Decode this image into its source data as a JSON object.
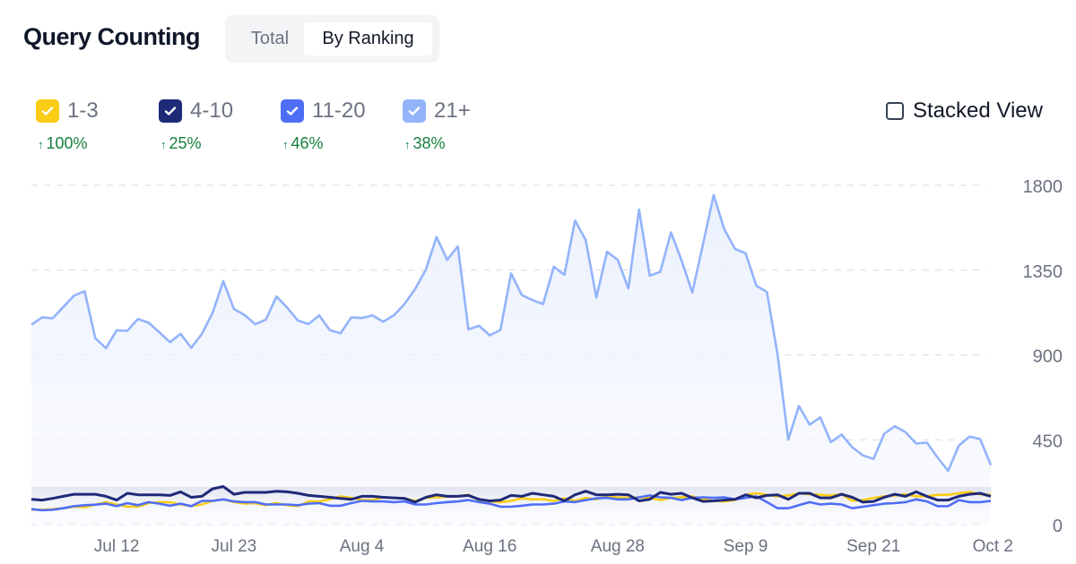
{
  "header": {
    "title": "Query Counting",
    "tabs": [
      {
        "label": "Total",
        "active": false
      },
      {
        "label": "By Ranking",
        "active": true
      }
    ]
  },
  "legend": [
    {
      "label": "1-3",
      "color": "#facc15",
      "checked": true,
      "change": "100%",
      "direction": "up"
    },
    {
      "label": "4-10",
      "color": "#1e2a78",
      "checked": true,
      "change": "25%",
      "direction": "up"
    },
    {
      "label": "11-20",
      "color": "#4f6ef7",
      "checked": true,
      "change": "46%",
      "direction": "up"
    },
    {
      "label": "21+",
      "color": "#93b4fb",
      "checked": true,
      "change": "38%",
      "direction": "up"
    }
  ],
  "stacked_view": {
    "label": "Stacked View",
    "checked": false
  },
  "chart_data": {
    "type": "line",
    "grid": true,
    "ylim": [
      0,
      1800
    ],
    "yticks": [
      "0",
      "450",
      "900",
      "1350",
      "1800"
    ],
    "yticks_values": [
      0,
      450,
      900,
      1350,
      1800
    ],
    "xtick_labels": [
      "Jul 12",
      "Jul 23",
      "Aug 4",
      "Aug 16",
      "Aug 28",
      "Sep 9",
      "Sep 21",
      "Oct 2"
    ],
    "x": [
      "Jul 4",
      "Jul 5",
      "Jul 6",
      "Jul 7",
      "Jul 8",
      "Jul 9",
      "Jul 10",
      "Jul 11",
      "Jul 12",
      "Jul 13",
      "Jul 14",
      "Jul 15",
      "Jul 16",
      "Jul 17",
      "Jul 18",
      "Jul 19",
      "Jul 20",
      "Jul 21",
      "Jul 22",
      "Jul 23",
      "Jul 24",
      "Jul 25",
      "Jul 26",
      "Jul 27",
      "Jul 28",
      "Jul 29",
      "Jul 30",
      "Jul 31",
      "Aug 1",
      "Aug 2",
      "Aug 3",
      "Aug 4",
      "Aug 5",
      "Aug 6",
      "Aug 7",
      "Aug 8",
      "Aug 9",
      "Aug 10",
      "Aug 11",
      "Aug 12",
      "Aug 13",
      "Aug 14",
      "Aug 15",
      "Aug 16",
      "Aug 17",
      "Aug 18",
      "Aug 19",
      "Aug 20",
      "Aug 21",
      "Aug 22",
      "Aug 23",
      "Aug 24",
      "Aug 25",
      "Aug 26",
      "Aug 27",
      "Aug 28",
      "Aug 29",
      "Aug 30",
      "Aug 31",
      "Sep 1",
      "Sep 2",
      "Sep 3",
      "Sep 4",
      "Sep 5",
      "Sep 6",
      "Sep 7",
      "Sep 8",
      "Sep 9",
      "Sep 10",
      "Sep 11",
      "Sep 12",
      "Sep 13",
      "Sep 14",
      "Sep 15",
      "Sep 16",
      "Sep 17",
      "Sep 18",
      "Sep 19",
      "Sep 20",
      "Sep 21",
      "Sep 22",
      "Sep 23",
      "Sep 24",
      "Sep 25",
      "Sep 26",
      "Sep 27",
      "Sep 28",
      "Sep 29",
      "Sep 30",
      "Oct 1",
      "Oct 2"
    ],
    "series": [
      {
        "name": "21+",
        "color": "#93b4fb",
        "values": [
          1060,
          1099,
          1095,
          1155,
          1215,
          1238,
          989,
          936,
          1031,
          1028,
          1091,
          1071,
          1020,
          968,
          1012,
          938,
          1012,
          1123,
          1292,
          1144,
          1112,
          1063,
          1088,
          1210,
          1151,
          1083,
          1064,
          1110,
          1031,
          1015,
          1099,
          1096,
          1110,
          1076,
          1110,
          1170,
          1250,
          1352,
          1526,
          1405,
          1476,
          1036,
          1055,
          1004,
          1033,
          1332,
          1218,
          1191,
          1170,
          1368,
          1325,
          1613,
          1510,
          1205,
          1447,
          1405,
          1253,
          1672,
          1321,
          1341,
          1550,
          1400,
          1231,
          1487,
          1748,
          1566,
          1463,
          1439,
          1268,
          1234,
          902,
          451,
          630,
          530,
          569,
          438,
          478,
          411,
          367,
          348,
          482,
          522,
          490,
          430,
          435,
          356,
          285,
          419,
          467,
          454,
          316
        ]
      },
      {
        "name": "1-3",
        "color": "#facc15",
        "values": [
          79,
          79,
          82,
          87,
          95,
          92,
          106,
          119,
          107,
          95,
          95,
          114,
          119,
          119,
          107,
          98,
          107,
          126,
          134,
          119,
          111,
          114,
          103,
          114,
          103,
          98,
          123,
          123,
          134,
          150,
          142,
          130,
          130,
          145,
          142,
          139,
          126,
          142,
          145,
          150,
          150,
          158,
          130,
          123,
          119,
          126,
          139,
          134,
          134,
          126,
          139,
          126,
          142,
          134,
          150,
          145,
          142,
          145,
          142,
          130,
          142,
          145,
          150,
          134,
          126,
          123,
          130,
          158,
          166,
          158,
          150,
          155,
          166,
          161,
          158,
          155,
          161,
          126,
          130,
          142,
          150,
          155,
          161,
          150,
          150,
          158,
          158,
          166,
          174,
          161,
          158
        ]
      },
      {
        "name": "11-20",
        "color": "#4f6ef7",
        "values": [
          82,
          76,
          79,
          87,
          98,
          103,
          106,
          111,
          98,
          114,
          103,
          119,
          111,
          100,
          111,
          98,
          126,
          126,
          134,
          123,
          119,
          119,
          107,
          107,
          107,
          103,
          111,
          114,
          100,
          100,
          114,
          126,
          123,
          123,
          119,
          123,
          107,
          107,
          114,
          119,
          123,
          130,
          119,
          111,
          95,
          95,
          100,
          107,
          107,
          111,
          123,
          119,
          130,
          139,
          142,
          134,
          134,
          145,
          155,
          145,
          142,
          130,
          142,
          145,
          142,
          145,
          134,
          142,
          150,
          119,
          87,
          87,
          103,
          119,
          107,
          111,
          107,
          87,
          95,
          103,
          111,
          114,
          119,
          134,
          123,
          98,
          98,
          130,
          119,
          119,
          126
        ]
      },
      {
        "name": "4-10",
        "color": "#1e2a78",
        "values": [
          134,
          130,
          139,
          150,
          161,
          161,
          161,
          150,
          130,
          166,
          158,
          158,
          158,
          155,
          174,
          145,
          150,
          190,
          202,
          161,
          171,
          171,
          171,
          177,
          174,
          166,
          155,
          150,
          145,
          139,
          134,
          150,
          150,
          145,
          142,
          139,
          119,
          145,
          158,
          150,
          150,
          155,
          134,
          126,
          130,
          155,
          150,
          166,
          158,
          150,
          126,
          158,
          177,
          158,
          158,
          161,
          158,
          126,
          134,
          171,
          161,
          166,
          142,
          123,
          126,
          130,
          134,
          158,
          142,
          155,
          158,
          134,
          166,
          166,
          142,
          142,
          161,
          145,
          119,
          123,
          145,
          161,
          150,
          174,
          150,
          130,
          130,
          150,
          161,
          166,
          150
        ]
      }
    ]
  }
}
